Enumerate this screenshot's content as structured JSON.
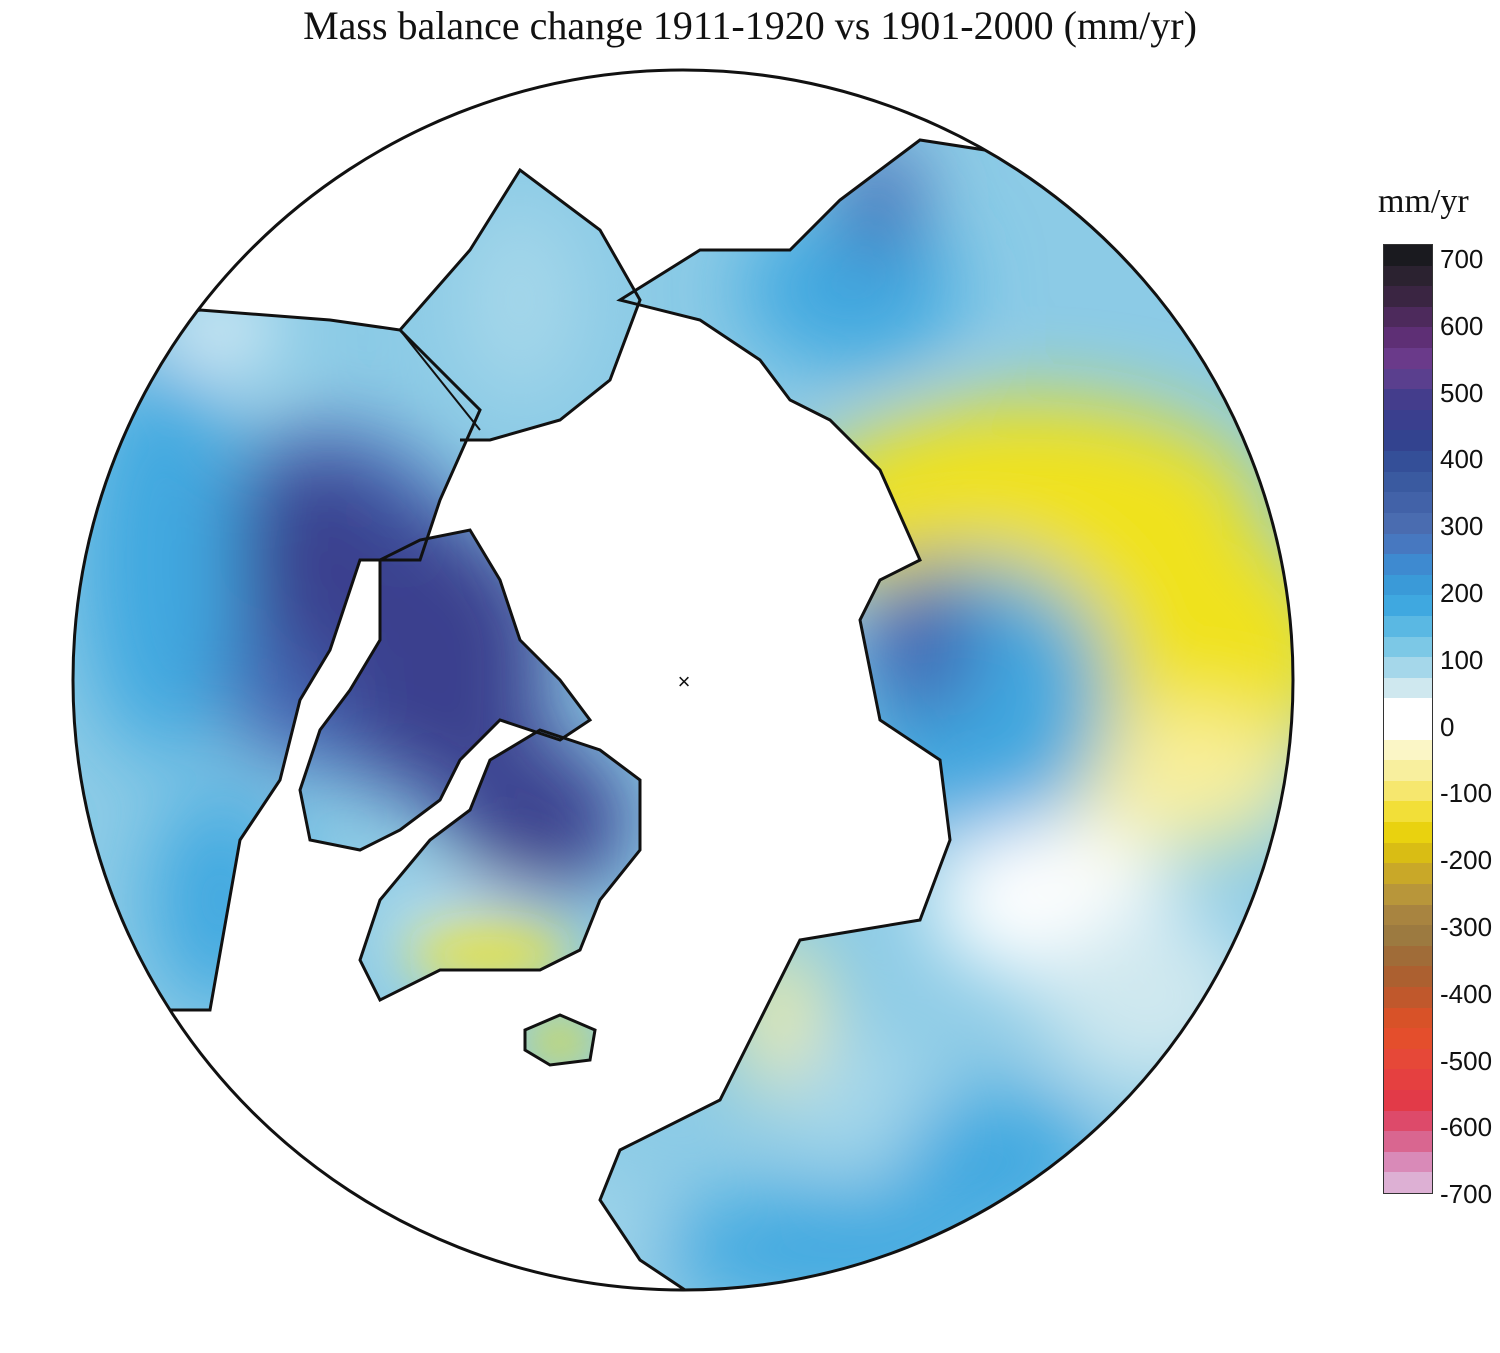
{
  "title": "Mass balance change 1911-1920 vs 1901-2000 (mm/yr)",
  "legend": {
    "unit": "mm/yr",
    "ticks": [
      "700",
      "600",
      "500",
      "400",
      "300",
      "200",
      "100",
      "0",
      "-100",
      "-200",
      "-300",
      "-400",
      "-500",
      "-600",
      "-700"
    ],
    "colors": [
      "#1a1a1f",
      "#2b2230",
      "#3a2542",
      "#4d2a5c",
      "#5e2f75",
      "#6a3a8a",
      "#5a3f8e",
      "#443d8c",
      "#3a3f8e",
      "#33438f",
      "#344f98",
      "#3a5aa0",
      "#4262a8",
      "#4a6cb0",
      "#4778c0",
      "#3e8ad0",
      "#3a9ad8",
      "#3fa8e0",
      "#5ab8e3",
      "#7cc8e6",
      "#a5d7ea",
      "#cfe8ef",
      "#ffffff",
      "#ffffff",
      "#fbf6c6",
      "#f8ef9e",
      "#f6e76e",
      "#f2df38",
      "#e9d20f",
      "#d9bd14",
      "#c9a828",
      "#b8963a",
      "#a88440",
      "#9c7a40",
      "#a06c38",
      "#ac6030",
      "#c0582c",
      "#d85228",
      "#e44e2c",
      "#e64838",
      "#e54040",
      "#e23a48",
      "#dd4a6a",
      "#d96690",
      "#d98ab8",
      "#ddb0d4"
    ]
  },
  "map": {
    "center_marker": "×",
    "colors": {
      "light_blue": "#8ccbe6",
      "pale_blue": "#cde6ef",
      "mid_blue": "#3fa8e0",
      "dark_blue": "#4466b2",
      "indigo": "#3a3f8e",
      "yellow": "#f0e21c",
      "pale_yellow": "#f8ef9e",
      "ocean": "#ffffff",
      "coast": "#111111"
    }
  }
}
